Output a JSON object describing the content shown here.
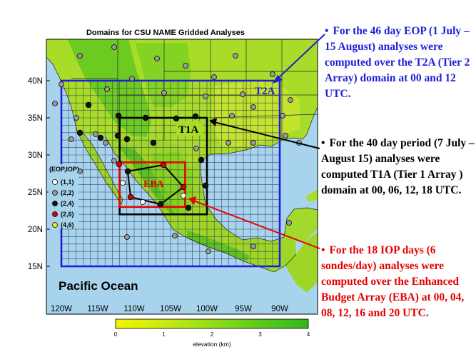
{
  "map": {
    "title": "Domains for CSU NAME Gridded Analyses",
    "ocean_label": "Pacific Ocean",
    "lat_labels": [
      "40N",
      "35N",
      "30N",
      "25N",
      "20N",
      "15N"
    ],
    "lon_labels": [
      "120W",
      "115W",
      "110W",
      "105W",
      "100W",
      "95W",
      "90W"
    ],
    "domains": {
      "t2a": {
        "label": "T2A",
        "color": "#1f1fd8",
        "lon": [
          -120,
          -90
        ],
        "lat": [
          15,
          40
        ]
      },
      "t1a": {
        "label": "T1A",
        "color": "#000000",
        "lon": [
          -112,
          -100
        ],
        "lat": [
          22,
          35
        ]
      },
      "eba": {
        "label": "EBA",
        "color": "#e60000",
        "lon": [
          -112,
          -103
        ],
        "lat": [
          23,
          29
        ]
      }
    },
    "legend": {
      "title": "(EOP,IOP)",
      "items": [
        {
          "label": "(1,1)",
          "color": "#ffffff"
        },
        {
          "label": "(2,2)",
          "color": "#9a9a9a"
        },
        {
          "label": "(2,4)",
          "color": "#111111"
        },
        {
          "label": "(2,6)",
          "color": "#e00000"
        },
        {
          "label": "(4,6)",
          "color": "#f2ef1a"
        }
      ]
    },
    "colorbar": {
      "label": "elevation (km)",
      "ticks": [
        "0",
        "1",
        "2",
        "3",
        "4"
      ],
      "colors": [
        "#f4f400",
        "#c8ec10",
        "#92de18",
        "#5cc91c",
        "#33b81b"
      ]
    }
  },
  "notes": {
    "eop": "For the 46 day EOP (1 July – 15 August) analyses were computed over  the  T2A (Tier 2 Array) domain at  00 and 12 UTC.",
    "forty_day": "For the 40 day period (7 July – August 15) analyses were computed T1A (Tier 1 Array ) domain at 00, 06, 12, 18 UTC.",
    "iop": "For the 18 IOP days (6 sondes/day) analyses were computed over the Enhanced Budget Array (EBA) at 00, 04, 08, 12, 16 and 20 UTC."
  }
}
